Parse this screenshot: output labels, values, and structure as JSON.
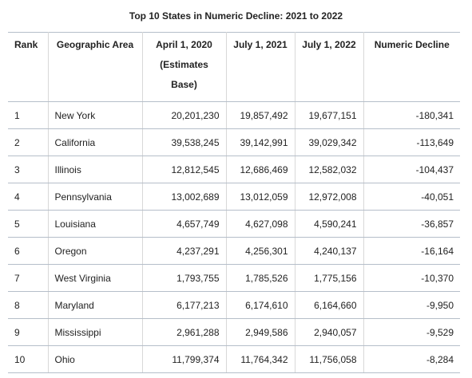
{
  "title": "Top 10 States in Numeric Decline: 2021 to 2022",
  "table": {
    "headers": [
      "Rank",
      "Geographic Area",
      "April 1, 2020 (Estimates Base)",
      "July 1, 2021",
      "July 1, 2022",
      "Numeric Decline"
    ],
    "rows": [
      [
        "1",
        "New York",
        "20,201,230",
        "19,857,492",
        "19,677,151",
        "-180,341"
      ],
      [
        "2",
        "California",
        "39,538,245",
        "39,142,991",
        "39,029,342",
        "-113,649"
      ],
      [
        "3",
        "Illinois",
        "12,812,545",
        "12,686,469",
        "12,582,032",
        "-104,437"
      ],
      [
        "4",
        "Pennsylvania",
        "13,002,689",
        "13,012,059",
        "12,972,008",
        "-40,051"
      ],
      [
        "5",
        "Louisiana",
        "4,657,749",
        "4,627,098",
        "4,590,241",
        "-36,857"
      ],
      [
        "6",
        "Oregon",
        "4,237,291",
        "4,256,301",
        "4,240,137",
        "-16,164"
      ],
      [
        "7",
        "West Virginia",
        "1,793,755",
        "1,785,526",
        "1,775,156",
        "-10,370"
      ],
      [
        "8",
        "Maryland",
        "6,177,213",
        "6,174,610",
        "6,164,660",
        "-9,950"
      ],
      [
        "9",
        "Mississippi",
        "2,961,288",
        "2,949,586",
        "2,940,057",
        "-9,529"
      ],
      [
        "10",
        "Ohio",
        "11,799,374",
        "11,764,342",
        "11,756,058",
        "-8,284"
      ]
    ]
  }
}
